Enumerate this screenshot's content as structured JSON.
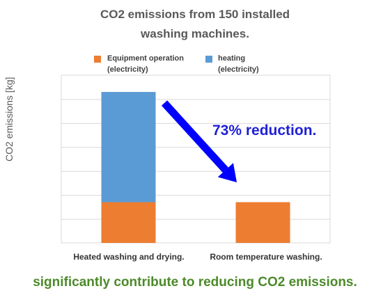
{
  "chart_data": {
    "type": "bar",
    "stacked": true,
    "title_line1": "CO2 emissions from 150 installed",
    "title_line2": "washing machines.",
    "ylabel": "CO2 emissions [kg]",
    "categories": [
      "Heated washing and drying.",
      "Room temperature washing."
    ],
    "series": [
      {
        "name_line1": "Equipment operation",
        "name_line2": "(electricity)",
        "color": "#ed7d31",
        "values": [
          1.7,
          1.7
        ]
      },
      {
        "name_line1": "heating",
        "name_line2": "(electricity)",
        "color": "#5b9bd5",
        "values": [
          4.6,
          0
        ]
      }
    ],
    "ylim": [
      0,
      7
    ],
    "grid": true,
    "y_tick_labels_shown": false,
    "legend_position": "top",
    "annotation": "73% reduction.",
    "annotation_color": "#1f1fd8",
    "arrow_color": "#0000ff"
  },
  "footer": {
    "text": "significantly contribute to reducing CO2 emissions.",
    "color": "#4c8a2a"
  }
}
